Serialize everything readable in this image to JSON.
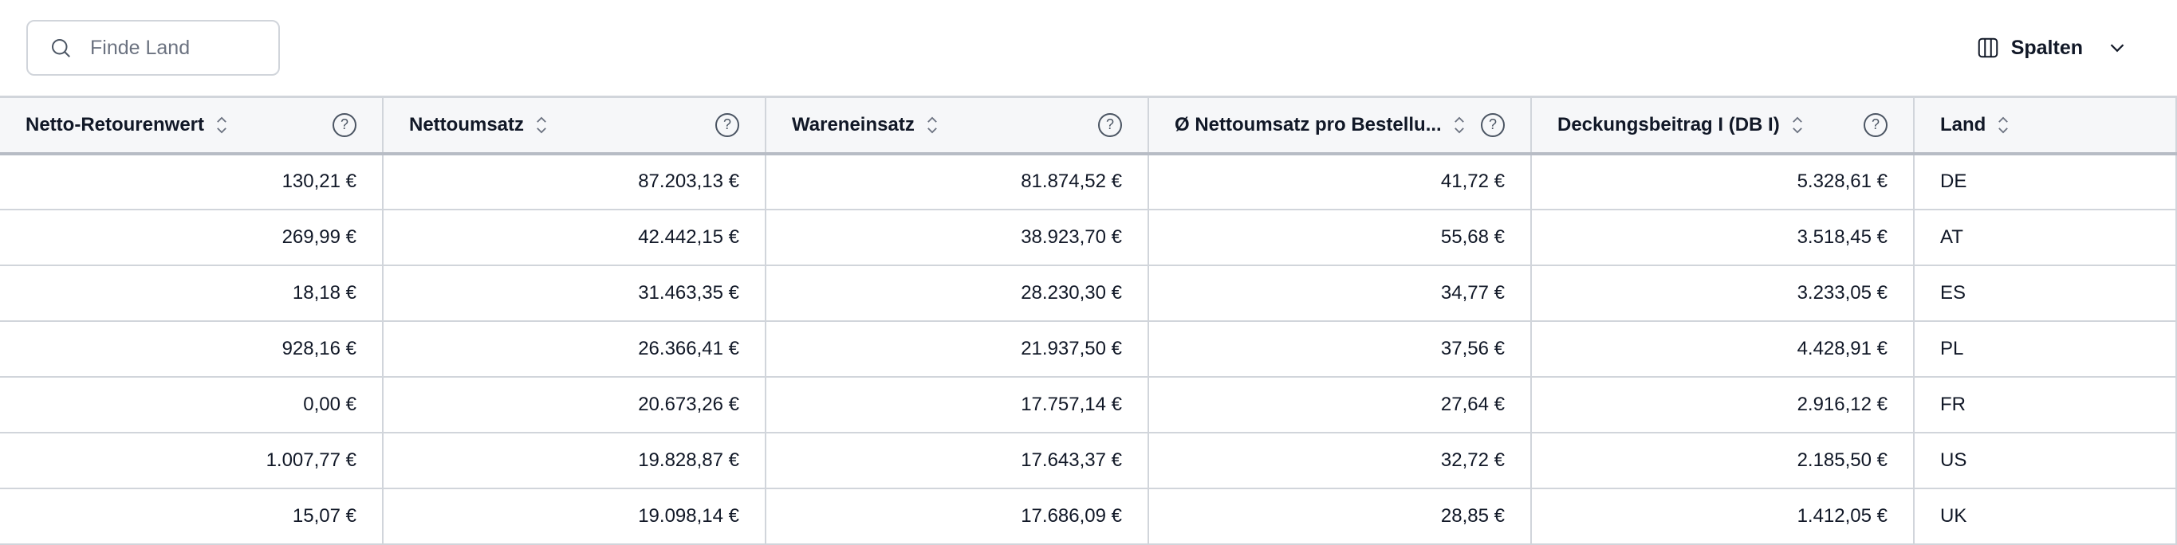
{
  "search": {
    "placeholder": "Finde Land",
    "value": ""
  },
  "columns_button": {
    "label": "Spalten"
  },
  "table": {
    "headers": [
      "Netto-Retourenwert",
      "Nettoumsatz",
      "Wareneinsatz",
      "Ø Nettoumsatz pro Bestellu...",
      "Deckungsbeitrag I (DB I)",
      "Land"
    ],
    "rows": [
      [
        "130,21 €",
        "87.203,13 €",
        "81.874,52 €",
        "41,72 €",
        "5.328,61 €",
        "DE"
      ],
      [
        "269,99 €",
        "42.442,15 €",
        "38.923,70 €",
        "55,68 €",
        "3.518,45 €",
        "AT"
      ],
      [
        "18,18 €",
        "31.463,35 €",
        "28.230,30 €",
        "34,77 €",
        "3.233,05 €",
        "ES"
      ],
      [
        "928,16 €",
        "26.366,41 €",
        "21.937,50 €",
        "37,56 €",
        "4.428,91 €",
        "PL"
      ],
      [
        "0,00 €",
        "20.673,26 €",
        "17.757,14 €",
        "27,64 €",
        "2.916,12 €",
        "FR"
      ],
      [
        "1.007,77 €",
        "19.828,87 €",
        "17.643,37 €",
        "32,72 €",
        "2.185,50 €",
        "US"
      ],
      [
        "15,07 €",
        "19.098,14 €",
        "17.686,09 €",
        "28,85 €",
        "1.412,05 €",
        "UK"
      ]
    ]
  },
  "icons": {
    "search": "search-icon",
    "columns": "columns-icon",
    "chevron": "chevron-down-icon",
    "sort": "sort-icon",
    "help": "help-circle-icon"
  }
}
